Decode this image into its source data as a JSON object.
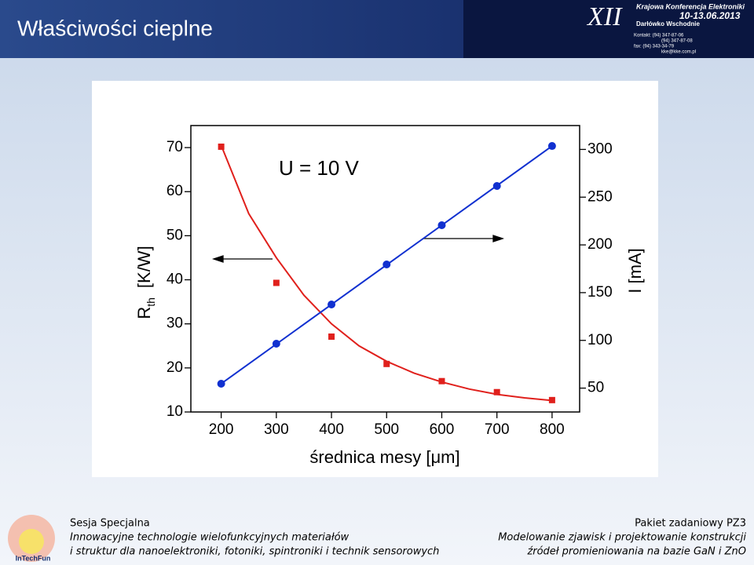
{
  "header": {
    "title": "Właściwości cieplne",
    "logo": {
      "numeral": "XII",
      "name": "Krajowa Konferencja Elektroniki",
      "dates": "10-13.06.2013",
      "place": "Darłówko Wschodnie",
      "contacts": [
        "Kontakt: (94) 347-87-06",
        "(94) 347-87-08",
        "fax: (94) 343-34-79",
        "kke@kke.com.pl"
      ]
    }
  },
  "chart_data": {
    "type": "scatter",
    "annotation": "U = 10 V",
    "x_label": "średnica mesy [μm]",
    "y_label": "R",
    "y_label_sub": "th",
    "y_label_unit": "[K/W]",
    "y2_label": "I [mA]",
    "xlim": [
      145,
      850
    ],
    "xticks": [
      200,
      300,
      400,
      500,
      600,
      700,
      800
    ],
    "ylim": [
      10,
      75
    ],
    "yticks": [
      10,
      20,
      30,
      40,
      50,
      60,
      70
    ],
    "y2lim": [
      25,
      325
    ],
    "y2ticks": [
      50,
      100,
      150,
      200,
      250,
      300
    ],
    "series": [
      {
        "color": "#e0201c",
        "marker": "square",
        "x": [
          200,
          300,
          400,
          500,
          600,
          700,
          800
        ],
        "values": [
          70.2,
          39.3,
          27.1,
          20.9,
          17.0,
          14.5,
          12.7
        ]
      },
      {
        "color": "#e0201c",
        "marker": "line",
        "x": [
          200,
          250,
          300,
          350,
          400,
          450,
          500,
          550,
          600,
          650,
          700,
          750,
          800
        ],
        "values": [
          70.5,
          55,
          45,
          36.5,
          30,
          25,
          21.5,
          18.8,
          16.8,
          15.2,
          14,
          13.2,
          12.6
        ]
      },
      {
        "color": "#1030d0",
        "marker": "circle",
        "axis": "y2",
        "x": [
          200,
          300,
          400,
          500,
          600,
          700,
          800
        ],
        "values": [
          54.6,
          96.5,
          137.6,
          179.5,
          220.6,
          261.7,
          303.6
        ]
      },
      {
        "color": "#1030d0",
        "marker": "line",
        "axis": "y2",
        "x": [
          200,
          800
        ],
        "values": [
          54.6,
          303.6
        ]
      }
    ]
  },
  "footer": {
    "logo": "InTechFun",
    "left": [
      "Sesja Specjalna",
      "Innowacyjne technologie wielofunkcyjnych materiałów",
      "i struktur dla nanoelektroniki, fotoniki, spintroniki i technik sensorowych"
    ],
    "right": [
      "Pakiet zadaniowy  PZ3",
      "Modelowanie zjawisk i projektowanie konstrukcji",
      "źródeł promieniowania na bazie GaN i ZnO"
    ]
  }
}
